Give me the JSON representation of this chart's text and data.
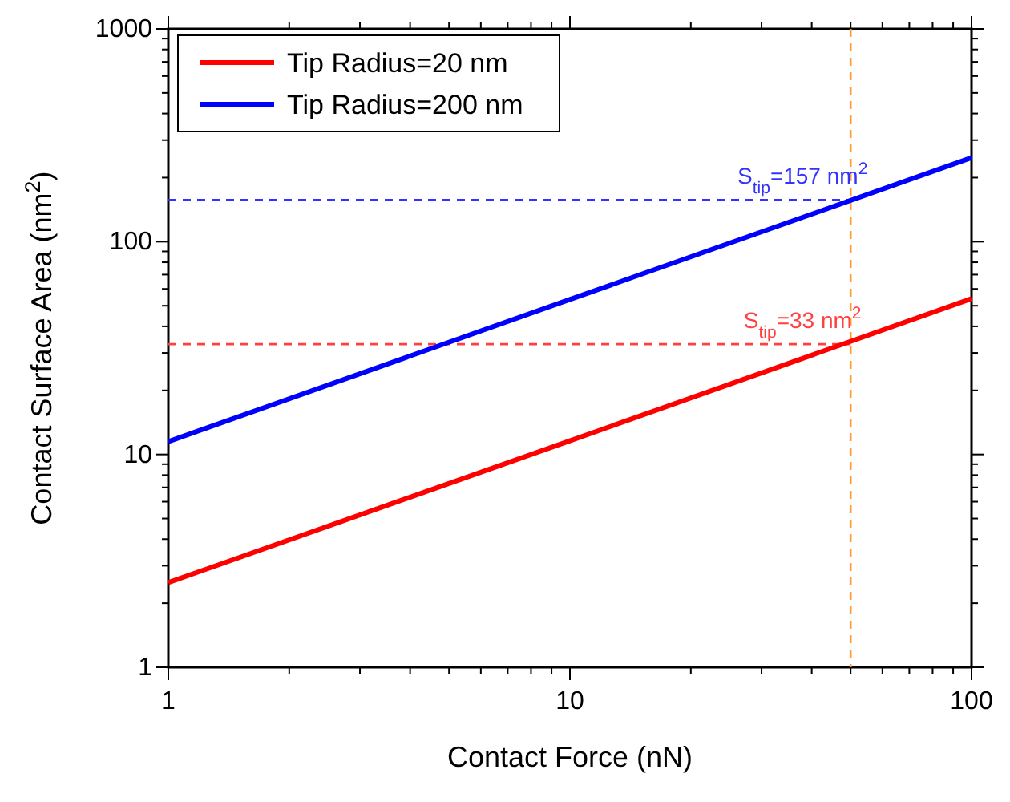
{
  "chart_data": {
    "type": "line",
    "xlabel": "Contact Force (nN)",
    "ylabel": "Contact Surface Area (nm$^{2}$)",
    "log": "xy",
    "legend": "top left",
    "line_style": "solid",
    "xlim": [
      1,
      100
    ],
    "ylim": [
      1,
      1000
    ],
    "xticks": [
      1,
      {
        "value": 2,
        "label": null
      },
      {
        "value": 3,
        "label": null
      },
      {
        "value": 4,
        "label": null
      },
      {
        "value": 5,
        "label": null
      },
      {
        "value": 6,
        "label": null
      },
      {
        "value": 7,
        "label": null
      },
      {
        "value": 8,
        "label": null
      },
      {
        "value": 9,
        "label": null
      },
      10,
      {
        "value": 20,
        "label": null
      },
      {
        "value": 30,
        "label": null
      },
      {
        "value": 40,
        "label": null
      },
      {
        "value": 50,
        "label": null
      },
      {
        "value": 60,
        "label": null
      },
      {
        "value": 70,
        "label": null
      },
      {
        "value": 80,
        "label": null
      },
      {
        "value": 90,
        "label": null
      },
      100
    ],
    "yticks": [
      1,
      {
        "value": 2,
        "label": null
      },
      {
        "value": 3,
        "label": null
      },
      {
        "value": 4,
        "label": null
      },
      {
        "value": 5,
        "label": null
      },
      {
        "value": 6,
        "label": null
      },
      {
        "value": 7,
        "label": null
      },
      {
        "value": 8,
        "label": null
      },
      {
        "value": 9,
        "label": null
      },
      10,
      {
        "value": 20,
        "label": null
      },
      {
        "value": 30,
        "label": null
      },
      {
        "value": 40,
        "label": null
      },
      {
        "value": 50,
        "label": null
      },
      {
        "value": 60,
        "label": null
      },
      {
        "value": 70,
        "label": null
      },
      {
        "value": 80,
        "label": null
      },
      {
        "value": 90,
        "label": null
      },
      100,
      {
        "value": 200,
        "label": null
      },
      {
        "value": 300,
        "label": null
      },
      {
        "value": 400,
        "label": null
      },
      {
        "value": 500,
        "label": null
      },
      {
        "value": 600,
        "label": null
      },
      {
        "value": 700,
        "label": null
      },
      {
        "value": 800,
        "label": null
      },
      {
        "value": 900,
        "label": null
      },
      1000
    ],
    "x": [
      1,
      10,
      100
    ],
    "series": [
      {
        "name": "Tip Radius=20 nm",
        "color": "#ff0000",
        "values": [
          2.5,
          11.6,
          54
        ]
      },
      {
        "name": "Tip Radius=200 nm",
        "color": "#0000ff",
        "values": [
          11.5,
          53.5,
          248
        ]
      }
    ],
    "ref_lines": [
      {
        "axis": "x",
        "value": 50,
        "color": "#ff9933",
        "line_style": "dashed"
      },
      {
        "axis": "y",
        "value": 157,
        "label": "S$_{tip}$=157 nm$^{2}$",
        "color": "#3333ff",
        "line_style": "dashed"
      },
      {
        "axis": "y",
        "value": 33,
        "label": "S$_{tip}$=33 nm$^{2}$",
        "color": "#ff4040",
        "line_style": "dashed"
      }
    ]
  }
}
